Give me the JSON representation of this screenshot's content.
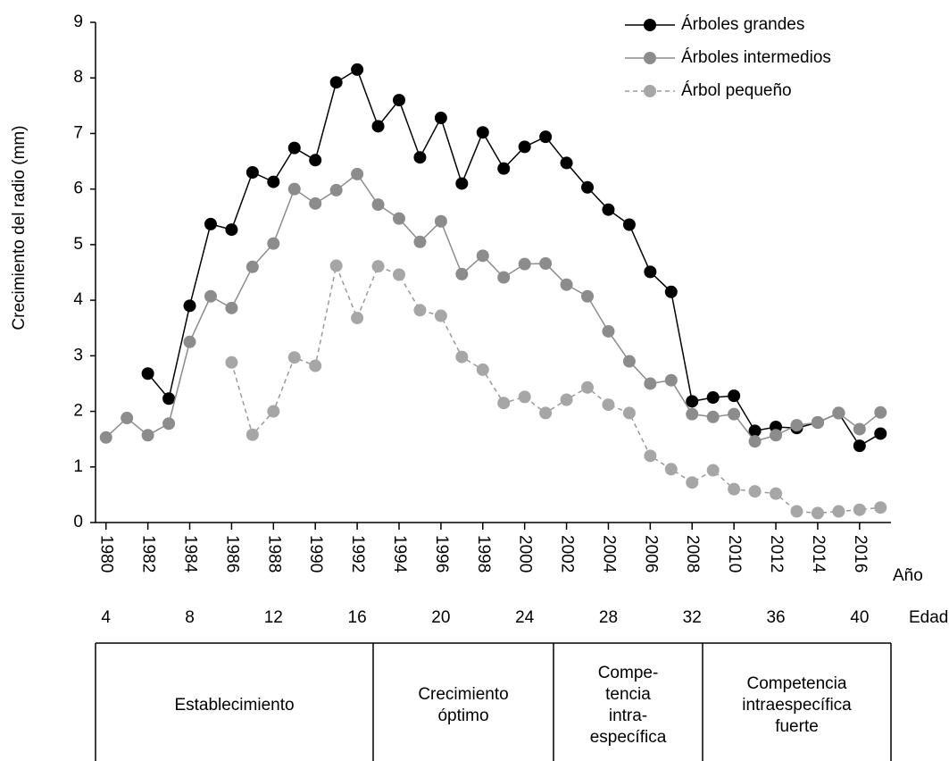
{
  "chart_data": {
    "type": "line",
    "y_label": "Crecimiento del radio (mm)",
    "x_label": "Año",
    "age_label": "Edad",
    "x": [
      1980,
      1981,
      1982,
      1983,
      1984,
      1985,
      1986,
      1987,
      1988,
      1989,
      1990,
      1991,
      1992,
      1993,
      1994,
      1995,
      1996,
      1997,
      1998,
      1999,
      2000,
      2001,
      2002,
      2003,
      2004,
      2005,
      2006,
      2007,
      2008,
      2009,
      2010,
      2011,
      2012,
      2013,
      2014,
      2015,
      2016,
      2017
    ],
    "series": [
      {
        "name": "Árboles grandes",
        "color": "#000000",
        "marker_color": "#000000",
        "dashed": false,
        "values": [
          null,
          null,
          2.68,
          2.23,
          3.9,
          5.37,
          5.27,
          6.3,
          6.13,
          6.74,
          6.52,
          7.92,
          8.15,
          7.13,
          7.6,
          6.57,
          7.28,
          6.1,
          7.02,
          6.37,
          6.76,
          6.94,
          6.47,
          6.03,
          5.63,
          5.36,
          4.51,
          4.15,
          2.18,
          2.25,
          2.28,
          1.65,
          1.72,
          1.7,
          1.8,
          1.97,
          1.38,
          1.6
        ]
      },
      {
        "name": "Árboles intermedios",
        "color": "#8c8c8c",
        "marker_color": "#8c8c8c",
        "dashed": false,
        "values": [
          1.53,
          1.88,
          1.57,
          1.78,
          3.25,
          4.07,
          3.86,
          4.6,
          5.02,
          6.0,
          5.74,
          5.98,
          6.27,
          5.72,
          5.47,
          5.05,
          5.42,
          4.47,
          4.8,
          4.41,
          4.65,
          4.66,
          4.28,
          4.07,
          3.44,
          2.9,
          2.5,
          2.56,
          1.95,
          1.9,
          1.95,
          1.46,
          1.57,
          1.75,
          1.8,
          1.97,
          1.68,
          1.98
        ]
      },
      {
        "name": "Árbol pequeño",
        "color": "#9a9a9a",
        "marker_color": "#a6a6a6",
        "dashed": true,
        "values": [
          null,
          null,
          null,
          null,
          null,
          null,
          2.88,
          1.58,
          2.0,
          2.97,
          2.82,
          4.62,
          3.68,
          4.61,
          4.46,
          3.82,
          3.72,
          2.98,
          2.75,
          2.15,
          2.26,
          1.97,
          2.21,
          2.43,
          2.12,
          1.97,
          1.2,
          0.96,
          0.72,
          0.94,
          0.6,
          0.56,
          0.52,
          0.2,
          0.17,
          0.2,
          0.23,
          0.27
        ]
      }
    ],
    "xlim": [
      1979.5,
      2017.5
    ],
    "xticks": [
      1980,
      1982,
      1984,
      1986,
      1988,
      1990,
      1992,
      1994,
      1996,
      1998,
      2000,
      2002,
      2004,
      2006,
      2008,
      2010,
      2012,
      2014,
      2016
    ],
    "age_ticks": [
      {
        "value": 1980,
        "label": "4"
      },
      {
        "value": 1984,
        "label": "8"
      },
      {
        "value": 1988,
        "label": "12"
      },
      {
        "value": 1992,
        "label": "16"
      },
      {
        "value": 1996,
        "label": "20"
      },
      {
        "value": 2000,
        "label": "24"
      },
      {
        "value": 2004,
        "label": "28"
      },
      {
        "value": 2008,
        "label": "32"
      },
      {
        "value": 2012,
        "label": "36"
      },
      {
        "value": 2016,
        "label": "40"
      }
    ],
    "ylim": [
      0,
      9
    ],
    "yticks": [
      0,
      1,
      2,
      3,
      4,
      5,
      6,
      7,
      8,
      9
    ],
    "legend": "upper right",
    "phases": [
      [
        "Establecimiento"
      ],
      [
        "Crecimiento",
        "óptimo"
      ],
      [
        "Compe-",
        "tencia",
        "intra-",
        "específica"
      ],
      [
        "Competencia",
        "intraespecífica",
        "fuerte"
      ]
    ]
  }
}
